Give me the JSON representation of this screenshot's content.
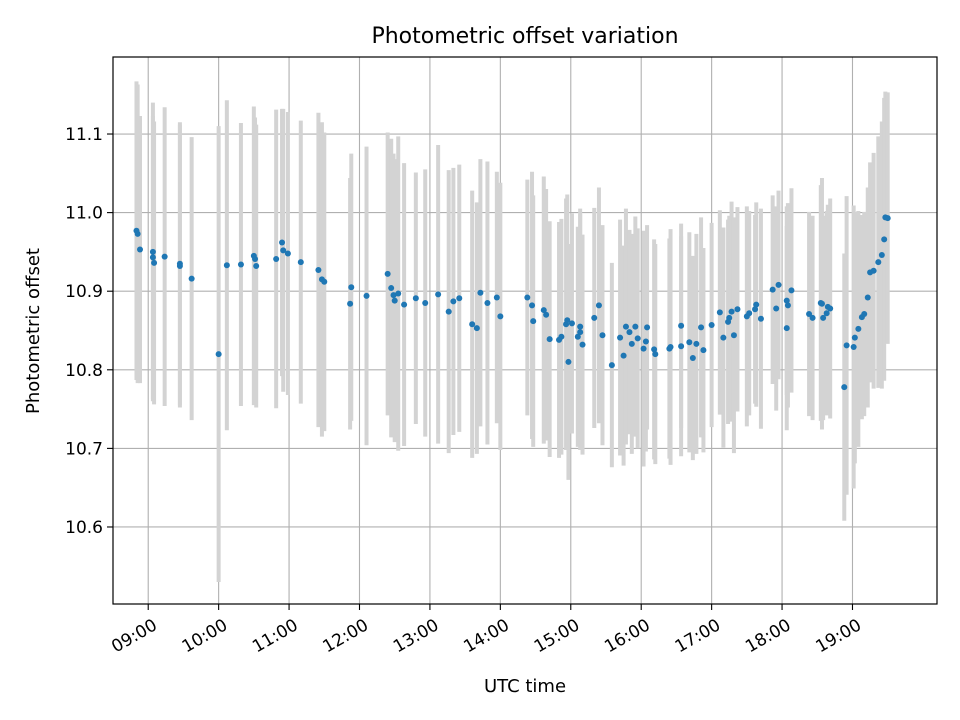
{
  "chart_data": {
    "type": "scatter",
    "title": "Photometric offset variation",
    "xlabel": "UTC time",
    "ylabel": "Photometric offset",
    "xlim": [
      "08:30",
      "20:12"
    ],
    "ylim": [
      10.502,
      11.198
    ],
    "grid": true,
    "legend": "none",
    "x_ticks": [
      "09:00",
      "10:00",
      "11:00",
      "12:00",
      "13:00",
      "14:00",
      "15:00",
      "16:00",
      "17:00",
      "18:00",
      "19:00"
    ],
    "y_ticks": [
      "10.6",
      "10.7",
      "10.8",
      "10.9",
      "11.0",
      "11.1"
    ],
    "colors": {
      "point": "#1f77b4",
      "errorbar": "#d3d3d3",
      "grid": "#b0b0b0"
    },
    "series": [
      {
        "x": [
          "08:50",
          "08:51",
          "08:53",
          "09:04",
          "09:04",
          "09:05",
          "09:14",
          "09:27",
          "09:27",
          "09:37",
          "10:00",
          "10:07",
          "10:19",
          "10:30",
          "10:31",
          "10:32",
          "10:49",
          "10:54",
          "10:55",
          "10:59",
          "11:10",
          "11:25",
          "11:28",
          "11:30",
          "11:52",
          "11:53",
          "12:06",
          "12:24",
          "12:27",
          "12:29",
          "12:30",
          "12:33",
          "12:38",
          "12:48",
          "12:56",
          "13:07",
          "13:16",
          "13:20",
          "13:25",
          "13:36",
          "13:40",
          "13:43",
          "13:49",
          "13:57",
          "14:00",
          "14:23",
          "14:27",
          "14:28",
          "14:37",
          "14:39",
          "14:42",
          "14:50",
          "14:52",
          "14:56",
          "14:57",
          "14:58",
          "15:01",
          "15:06",
          "15:08",
          "15:08",
          "15:10",
          "15:20",
          "15:24",
          "15:27",
          "15:35",
          "15:42",
          "15:45",
          "15:47",
          "15:50",
          "15:52",
          "15:55",
          "15:57",
          "16:02",
          "16:04",
          "16:05",
          "16:11",
          "16:12",
          "16:24",
          "16:25",
          "16:34",
          "16:34",
          "16:41",
          "16:44",
          "16:47",
          "16:51",
          "16:53",
          "17:00",
          "17:07",
          "17:10",
          "17:14",
          "17:15",
          "17:17",
          "17:19",
          "17:22",
          "17:30",
          "17:32",
          "17:37",
          "17:38",
          "17:42",
          "17:52",
          "17:55",
          "17:57",
          "18:04",
          "18:04",
          "18:05",
          "18:08",
          "18:23",
          "18:26",
          "18:33",
          "18:34",
          "18:35",
          "18:38",
          "18:39",
          "18:41",
          "18:53",
          "18:55",
          "19:01",
          "19:02",
          "19:05",
          "19:08",
          "19:10",
          "19:13",
          "19:15",
          "19:18",
          "19:22",
          "19:25",
          "19:27",
          "19:28",
          "19:30"
        ],
        "y": [
          10.977,
          10.973,
          10.953,
          10.95,
          10.943,
          10.936,
          10.944,
          10.935,
          10.932,
          10.916,
          10.82,
          10.933,
          10.934,
          10.945,
          10.941,
          10.932,
          10.941,
          10.962,
          10.952,
          10.948,
          10.937,
          10.927,
          10.915,
          10.912,
          10.884,
          10.905,
          10.894,
          10.922,
          10.904,
          10.895,
          10.888,
          10.897,
          10.883,
          10.891,
          10.885,
          10.896,
          10.874,
          10.887,
          10.891,
          10.858,
          10.853,
          10.898,
          10.885,
          10.892,
          10.868,
          10.892,
          10.882,
          10.862,
          10.876,
          10.87,
          10.839,
          10.838,
          10.842,
          10.858,
          10.863,
          10.81,
          10.859,
          10.842,
          10.855,
          10.848,
          10.832,
          10.866,
          10.882,
          10.844,
          10.806,
          10.841,
          10.818,
          10.855,
          10.848,
          10.833,
          10.855,
          10.84,
          10.827,
          10.836,
          10.854,
          10.826,
          10.82,
          10.827,
          10.829,
          10.856,
          10.83,
          10.835,
          10.815,
          10.833,
          10.854,
          10.825,
          10.857,
          10.873,
          10.841,
          10.861,
          10.866,
          10.874,
          10.844,
          10.877,
          10.868,
          10.872,
          10.877,
          10.883,
          10.865,
          10.902,
          10.878,
          10.908,
          10.853,
          10.888,
          10.882,
          10.901,
          10.871,
          10.866,
          10.885,
          10.884,
          10.866,
          10.872,
          10.88,
          10.878,
          10.778,
          10.831,
          10.829,
          10.841,
          10.852,
          10.867,
          10.871,
          10.892,
          10.924,
          10.926,
          10.937,
          10.946,
          10.966,
          10.994,
          10.993
        ],
        "err": [
          0.19,
          0.19,
          0.17,
          0.19,
          0.18,
          0.18,
          0.19,
          0.18,
          0.18,
          0.18,
          0.29,
          0.21,
          0.18,
          0.19,
          0.18,
          0.18,
          0.19,
          0.17,
          0.18,
          0.18,
          0.18,
          0.2,
          0.2,
          0.19,
          0.16,
          0.17,
          0.19,
          0.18,
          0.19,
          0.18,
          0.18,
          0.2,
          0.18,
          0.16,
          0.17,
          0.19,
          0.18,
          0.17,
          0.17,
          0.17,
          0.16,
          0.17,
          0.18,
          0.16,
          0.17,
          0.15,
          0.17,
          0.16,
          0.17,
          0.16,
          0.15,
          0.15,
          0.15,
          0.16,
          0.16,
          0.15,
          0.14,
          0.14,
          0.15,
          0.15,
          0.14,
          0.14,
          0.15,
          0.14,
          0.13,
          0.15,
          0.14,
          0.15,
          0.13,
          0.14,
          0.14,
          0.14,
          0.15,
          0.14,
          0.13,
          0.14,
          0.14,
          0.14,
          0.15,
          0.13,
          0.14,
          0.14,
          0.13,
          0.14,
          0.14,
          0.13,
          0.13,
          0.13,
          0.14,
          0.13,
          0.13,
          0.14,
          0.15,
          0.13,
          0.14,
          0.13,
          0.12,
          0.13,
          0.14,
          0.12,
          0.13,
          0.12,
          0.13,
          0.12,
          0.13,
          0.13,
          0.13,
          0.13,
          0.15,
          0.16,
          0.13,
          0.13,
          0.13,
          0.14,
          0.17,
          0.19,
          0.18,
          0.16,
          0.15,
          0.13,
          0.13,
          0.14,
          0.14,
          0.15,
          0.16,
          0.17,
          0.18,
          0.16,
          0.16
        ]
      }
    ]
  }
}
